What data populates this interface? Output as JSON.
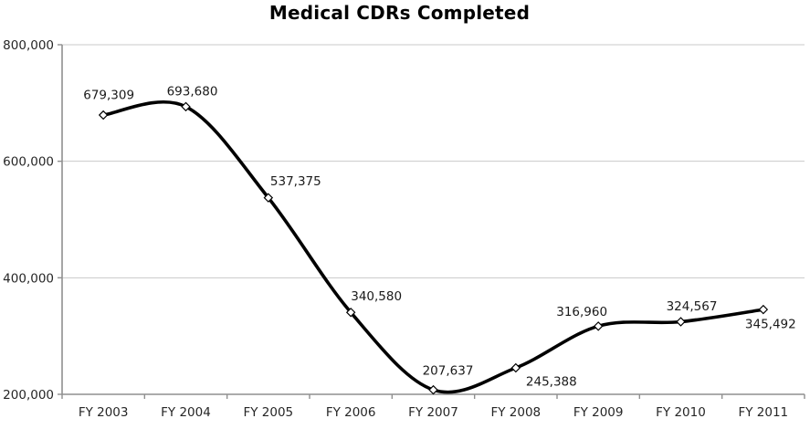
{
  "page": {
    "background_color": "#ffffff"
  },
  "chart_data": {
    "type": "line",
    "title": "Medical CDRs Completed",
    "series_name": "Medical CDRs Completed",
    "categories": [
      "FY 2003",
      "FY 2004",
      "FY 2005",
      "FY 2006",
      "FY 2007",
      "FY 2008",
      "FY 2009",
      "FY 2010",
      "FY 2011"
    ],
    "values": [
      679309,
      693680,
      537375,
      340580,
      207637,
      245388,
      316960,
      324567,
      345492
    ],
    "data_labels": [
      "679,309",
      "693,680",
      "537,375",
      "340,580",
      "207,637",
      "245,388",
      "316,960",
      "324,567",
      "345,492"
    ],
    "xlabel": "",
    "ylabel": "",
    "ylim": [
      200000,
      800000
    ],
    "y_tick_interval": 200000,
    "y_tick_labels": [
      "200,000",
      "400,000",
      "600,000",
      "800,000"
    ],
    "grid": "horizontal",
    "legend": "none",
    "smooth": true,
    "line_color": "#000000",
    "line_width": 3.6,
    "marker_shape": "diamond-open",
    "marker_fill": "#ffffff",
    "marker_stroke": "#000000",
    "gridline_color": "#c9c9c9",
    "axis_color": "#8f8f8f",
    "tick_label_color": "#262626",
    "data_label_color": "#1a1a1a",
    "title_color": "#000000"
  }
}
